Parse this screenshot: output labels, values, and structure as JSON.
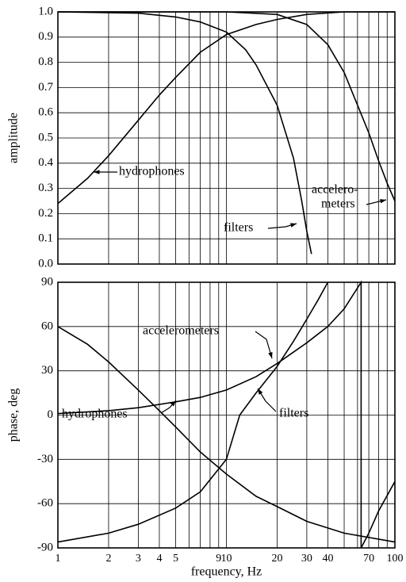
{
  "chart_data": [
    {
      "type": "line",
      "ylabel": "amplitude",
      "xlim": [
        1,
        100
      ],
      "xscale": "log",
      "xgrid": [
        1,
        2,
        3,
        4,
        5,
        6,
        7,
        8,
        9,
        10,
        20,
        30,
        40,
        50,
        60,
        70,
        80,
        90,
        100
      ],
      "ylim": [
        0,
        1
      ],
      "yticks": [
        {
          "value": 0,
          "label": "0.0"
        },
        0.1,
        0.2,
        0.3,
        0.4,
        0.5,
        0.6,
        0.7,
        0.8,
        0.9,
        {
          "value": 1,
          "label": "1.0"
        }
      ],
      "color": "#000000",
      "series": [
        {
          "name": "hydrophones",
          "x": [
            1,
            1.5,
            2,
            3,
            4,
            5,
            7,
            10,
            15,
            20,
            30,
            50,
            100
          ],
          "values": [
            0.24,
            0.34,
            0.43,
            0.57,
            0.67,
            0.74,
            0.84,
            0.91,
            0.95,
            0.97,
            0.99,
            1.0,
            1.0
          ]
        },
        {
          "name": "filters",
          "x": [
            1,
            3,
            5,
            7,
            10,
            13,
            15,
            20,
            25,
            28,
            30,
            32
          ],
          "values": [
            1.0,
            0.995,
            0.98,
            0.96,
            0.92,
            0.85,
            0.79,
            0.63,
            0.42,
            0.25,
            0.13,
            0.04
          ]
        },
        {
          "name": "accelerometers",
          "x": [
            1,
            10,
            20,
            30,
            40,
            50,
            60,
            70,
            80,
            90,
            100
          ],
          "values": [
            1.0,
            1.0,
            0.99,
            0.95,
            0.87,
            0.76,
            0.63,
            0.52,
            0.41,
            0.32,
            0.25
          ]
        }
      ],
      "annotations": [
        "hydrophones",
        "filters",
        "accelero-",
        "meters"
      ]
    },
    {
      "type": "line",
      "ylabel": "phase, deg",
      "xlabel": "frequency, Hz",
      "xlim": [
        1,
        100
      ],
      "xscale": "log",
      "xgrid": [
        1,
        2,
        3,
        4,
        5,
        6,
        7,
        8,
        9,
        10,
        20,
        30,
        40,
        50,
        60,
        70,
        80,
        90,
        100
      ],
      "xticks": [
        1,
        2,
        3,
        4,
        5,
        9,
        10,
        20,
        30,
        40,
        70,
        100
      ],
      "ylim": [
        -90,
        90
      ],
      "yticks": [
        -90,
        -60,
        -30,
        0,
        30,
        60,
        90
      ],
      "color": "#000000",
      "series": [
        {
          "name": "hydrophones",
          "x": [
            1,
            1.5,
            2,
            3,
            4,
            5,
            7,
            10,
            15,
            20,
            30,
            50,
            100
          ],
          "values": [
            60,
            48,
            36,
            17,
            3,
            -8,
            -25,
            -40,
            -55,
            -62,
            -72,
            -80,
            -86
          ]
        },
        {
          "name": "filters",
          "x": [
            1,
            2,
            3,
            5,
            7,
            10,
            12,
            15,
            20,
            25,
            30,
            35,
            40
          ],
          "values": [
            -86,
            -80,
            -74,
            -63,
            -52,
            -30,
            0,
            15,
            33,
            50,
            65,
            78,
            90
          ]
        },
        {
          "name": "accelerometers",
          "x": [
            1,
            2,
            3,
            5,
            7,
            10,
            15,
            20,
            30,
            40,
            50,
            63,
            63,
            70,
            80,
            100
          ],
          "values": [
            1,
            3,
            5,
            9,
            12,
            17,
            26,
            35,
            49,
            60,
            72,
            90,
            -90,
            -80,
            -65,
            -45
          ]
        }
      ],
      "annotations": [
        "accelerometers",
        "hydrophones",
        "filters"
      ]
    }
  ]
}
